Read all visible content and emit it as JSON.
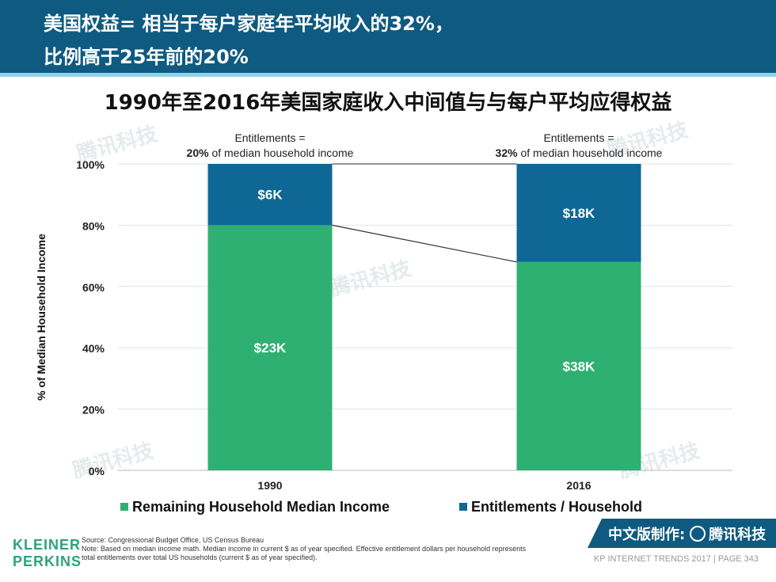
{
  "header": {
    "line1": "美国权益= 相当于每户家庭年平均收入的32%，",
    "line2": "比例高于25年前的20%"
  },
  "chart_data": {
    "type": "bar",
    "stacked": true,
    "title": "1990年至2016年美国家庭收入中间值与与每户平均应得权益",
    "ylabel": "% of Median Household Income",
    "xlabel": "",
    "ylim": [
      0,
      100
    ],
    "yticks": [
      0,
      20,
      40,
      60,
      80,
      100
    ],
    "ytick_labels": [
      "0%",
      "20%",
      "40%",
      "60%",
      "80%",
      "100%"
    ],
    "categories": [
      "1990",
      "2016"
    ],
    "series": [
      {
        "name": "Remaining Household Median Income",
        "color": "#2fb073",
        "values": [
          80,
          68
        ],
        "labels": [
          "$23K",
          "$38K"
        ]
      },
      {
        "name": "Entitlements / Household",
        "color": "#0f6796",
        "values": [
          20,
          32
        ],
        "labels": [
          "$6K",
          "$18K"
        ]
      }
    ],
    "annotations": [
      {
        "line1": "Entitlements =",
        "bold": "20%",
        "rest": " of median household income"
      },
      {
        "line1": "Entitlements =",
        "bold": "32%",
        "rest": " of median household income"
      }
    ],
    "legend_position": "bottom",
    "grid": true
  },
  "watermark": "腾讯科技",
  "footer": {
    "logo_line1": "KLEINER",
    "logo_line2": "PERKINS",
    "source": "Source: Congressional Budget Office, US Census Bureau",
    "note1": "Note: Based on median income math. Median income in current $ as of year specified. Effective entitlement dollars per household represents",
    "note2": "total entitlements over total US households (current $ as of year specified).",
    "badge_prefix": "中文版制作:",
    "badge_brand": "腾讯科技",
    "page_ref": "KP INTERNET TRENDS 2017  |  PAGE 343"
  }
}
